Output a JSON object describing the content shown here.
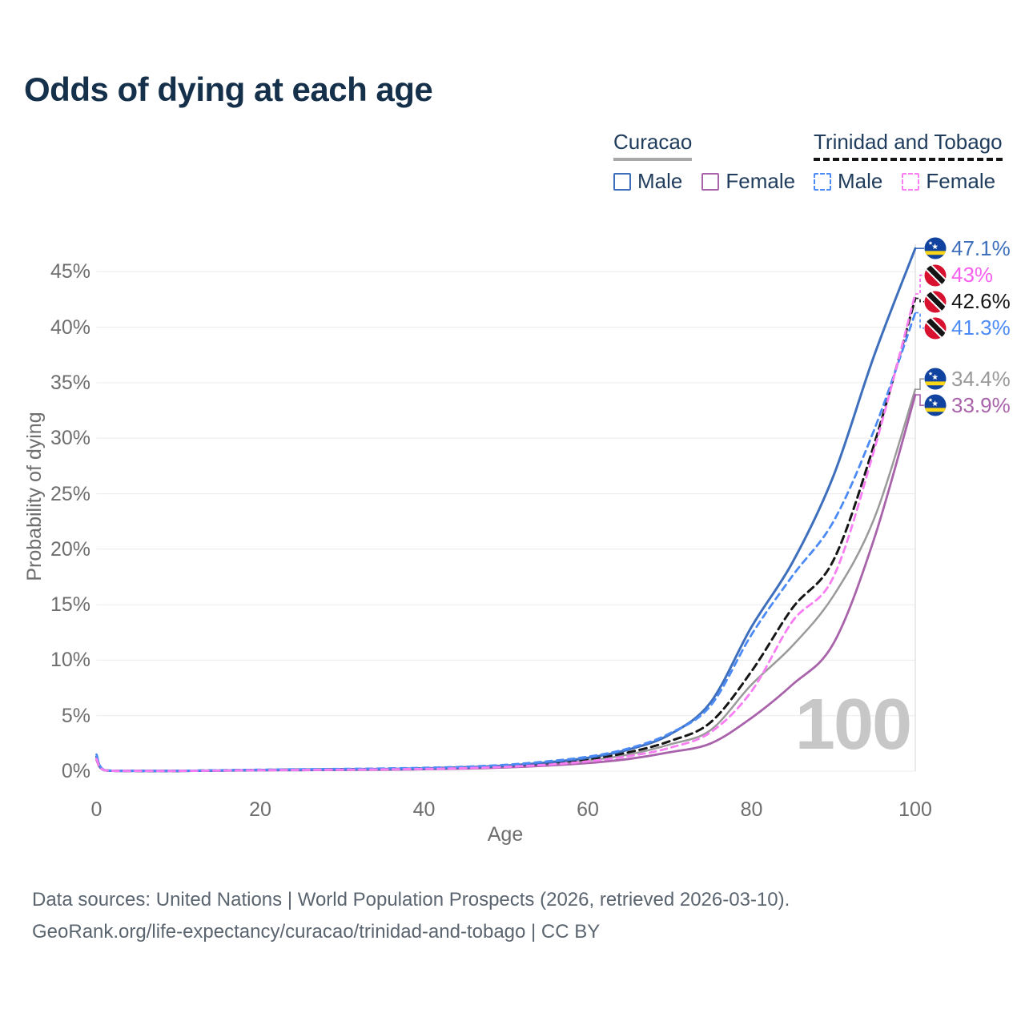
{
  "title": "Odds of dying at each age",
  "legend": {
    "groups": [
      {
        "label": "Curacao",
        "underline_style": "solid",
        "underline_color": "#a8a8a8",
        "items": [
          {
            "label": "Male",
            "color": "#3e6fbd",
            "dashed": false
          },
          {
            "label": "Female",
            "color": "#a963ab",
            "dashed": false
          }
        ]
      },
      {
        "label": "Trinidad and Tobago",
        "underline_style": "dashed",
        "underline_color": "#161616",
        "items": [
          {
            "label": "Male",
            "color": "#4c8bf5",
            "dashed": true
          },
          {
            "label": "Female",
            "color": "#f97ef3",
            "dashed": true
          }
        ]
      }
    ]
  },
  "chart_data": {
    "type": "line",
    "title": "Odds of dying at each age",
    "xlabel": "Age",
    "ylabel": "Probability of dying",
    "x_ticks": [
      "0",
      "20",
      "40",
      "60",
      "80",
      "100"
    ],
    "y_ticks": [
      "0%",
      "5%",
      "10%",
      "15%",
      "20%",
      "25%",
      "30%",
      "35%",
      "40%",
      "45%"
    ],
    "xlim": [
      0,
      100
    ],
    "ylim_pct": [
      0,
      45.5
    ],
    "grid": "horizontal",
    "legend_position": "top-right",
    "hover_age_label": "100",
    "ages": [
      0,
      1,
      5,
      10,
      15,
      20,
      25,
      30,
      35,
      40,
      45,
      50,
      55,
      60,
      65,
      70,
      75,
      80,
      85,
      90,
      95,
      100
    ],
    "series": [
      {
        "id": "curacao-both",
        "name": "Curacao",
        "country": "Curacao",
        "sex": "Both",
        "color": "#9a9a9a",
        "label_color": "#9a9a9a",
        "dash": null,
        "flag": "curacao",
        "end_label": "34.4%",
        "end_value": 34.4,
        "values": [
          1.2,
          0.08,
          0.02,
          0.02,
          0.05,
          0.09,
          0.12,
          0.14,
          0.17,
          0.21,
          0.29,
          0.42,
          0.64,
          0.95,
          1.5,
          2.4,
          3.7,
          7.8,
          11.3,
          15.8,
          22.8,
          34.4
        ]
      },
      {
        "id": "curacao-female",
        "name": "Curacao Female",
        "country": "Curacao",
        "sex": "Female",
        "color": "#a963ab",
        "label_color": "#a963ab",
        "dash": null,
        "flag": "curacao",
        "end_label": "33.9%",
        "end_value": 33.9,
        "values": [
          1.0,
          0.07,
          0.02,
          0.02,
          0.04,
          0.07,
          0.09,
          0.11,
          0.13,
          0.17,
          0.23,
          0.33,
          0.5,
          0.73,
          1.1,
          1.7,
          2.5,
          4.8,
          7.8,
          11.5,
          21.0,
          33.9
        ]
      },
      {
        "id": "trinidad-both",
        "name": "Trinidad and Tobago",
        "country": "Trinidad and Tobago",
        "sex": "Both",
        "color": "#161616",
        "label_color": "#161616",
        "dash": [
          9,
          6
        ],
        "flag": "trinidad",
        "end_label": "42.6%",
        "end_value": 42.6,
        "values": [
          1.3,
          0.08,
          0.02,
          0.02,
          0.07,
          0.11,
          0.14,
          0.17,
          0.2,
          0.25,
          0.34,
          0.48,
          0.72,
          1.08,
          1.7,
          2.7,
          4.4,
          9.0,
          14.7,
          19.0,
          29.5,
          42.6
        ]
      },
      {
        "id": "curacao-male",
        "name": "Curacao Male",
        "country": "Curacao",
        "sex": "Male",
        "color": "#3e6fbd",
        "label_color": "#3e6fbd",
        "dash": null,
        "flag": "curacao",
        "end_label": "47.1%",
        "end_value": 47.1,
        "values": [
          1.3,
          0.08,
          0.02,
          0.02,
          0.06,
          0.1,
          0.13,
          0.16,
          0.19,
          0.24,
          0.33,
          0.5,
          0.78,
          1.2,
          1.95,
          3.3,
          6.2,
          13.0,
          18.8,
          26.6,
          37.5,
          47.1
        ]
      },
      {
        "id": "trinidad-male",
        "name": "Trinidad and Tobago Male",
        "country": "Trinidad and Tobago",
        "sex": "Male",
        "color": "#4c8bf5",
        "label_color": "#4c8bf5",
        "dash": [
          8,
          6
        ],
        "flag": "trinidad",
        "end_label": "41.3%",
        "end_value": 41.3,
        "values": [
          1.5,
          0.09,
          0.03,
          0.03,
          0.08,
          0.13,
          0.17,
          0.2,
          0.24,
          0.3,
          0.4,
          0.58,
          0.88,
          1.3,
          2.05,
          3.4,
          5.9,
          12.3,
          17.6,
          22.5,
          30.8,
          41.3
        ]
      },
      {
        "id": "trinidad-female",
        "name": "Trinidad and Tobago Female",
        "country": "Trinidad and Tobago",
        "sex": "Female",
        "color": "#f97ef3",
        "label_color": "#f860f0",
        "dash": [
          8,
          6
        ],
        "flag": "trinidad",
        "end_label": "43%",
        "end_value": 43.0,
        "values": [
          1.1,
          0.07,
          0.02,
          0.02,
          0.05,
          0.09,
          0.11,
          0.13,
          0.16,
          0.2,
          0.27,
          0.39,
          0.58,
          0.88,
          1.35,
          2.1,
          3.5,
          7.2,
          13.5,
          17.5,
          29.0,
          43.0
        ]
      }
    ]
  },
  "flag_colors": {
    "curacao_blue": "#10439f",
    "curacao_yellow": "#f9d616",
    "tt_red": "#d8112f",
    "tt_black": "#141414"
  },
  "footer": {
    "line1": "Data sources: United Nations | World Population Prospects (2026, retrieved 2026-03-10).",
    "line2": "GeoRank.org/life-expectancy/curacao/trinidad-and-tobago | CC BY"
  }
}
